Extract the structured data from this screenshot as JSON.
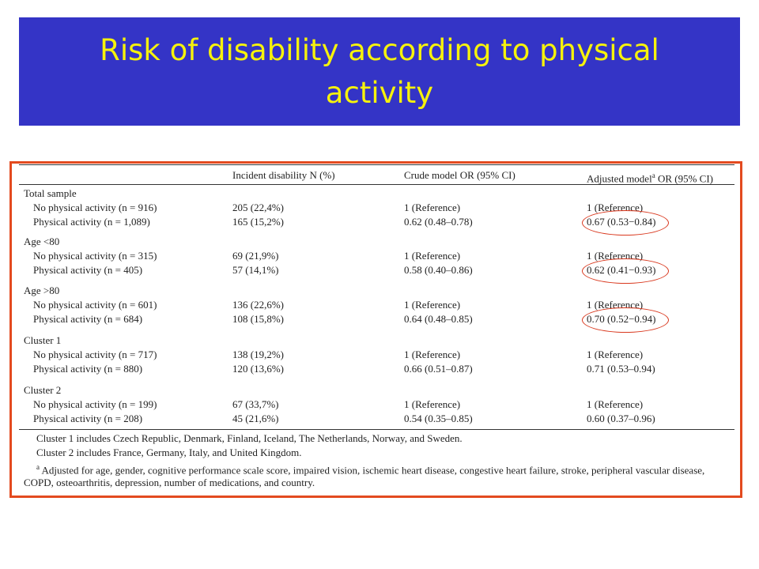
{
  "title": "Risk of disability according to physical activity",
  "table": {
    "headers": {
      "col1": "Incident disability N (%)",
      "col2": "Crude model OR (95% CI)",
      "col3_pre": "Adjusted model",
      "col3_sup": "a",
      "col3_post": " OR (95% CI)"
    },
    "groups": [
      {
        "label": "Total sample",
        "rows": [
          {
            "label": "No physical activity (n = 916)",
            "incident": "205 (22,4%)",
            "crude": "1 (Reference)",
            "adjusted": "1 (Reference)"
          },
          {
            "label": "Physical activity (n = 1,089)",
            "incident": "165 (15,2%)",
            "crude": "0.62 (0.48–0.78)",
            "adjusted": "0.67 (0.53−0.84)"
          }
        ]
      },
      {
        "label": "Age <80",
        "rows": [
          {
            "label": "No physical activity (n = 315)",
            "incident": "69 (21,9%)",
            "crude": "1 (Reference)",
            "adjusted": "1 (Reference)"
          },
          {
            "label": "Physical activity (n = 405)",
            "incident": "57 (14,1%)",
            "crude": "0.58 (0.40–0.86)",
            "adjusted": "0.62 (0.41−0.93)"
          }
        ]
      },
      {
        "label": "Age >80",
        "rows": [
          {
            "label": "No physical activity (n = 601)",
            "incident": "136 (22,6%)",
            "crude": "1 (Reference)",
            "adjusted": "1 (Reference)"
          },
          {
            "label": "Physical activity (n = 684)",
            "incident": "108 (15,8%)",
            "crude": "0.64 (0.48–0.85)",
            "adjusted": "0.70 (0.52−0.94)"
          }
        ]
      },
      {
        "label": "Cluster 1",
        "rows": [
          {
            "label": "No physical activity (n = 717)",
            "incident": "138 (19,2%)",
            "crude": "1 (Reference)",
            "adjusted": "1 (Reference)"
          },
          {
            "label": "Physical activity (n = 880)",
            "incident": "120 (13,6%)",
            "crude": "0.66 (0.51–0.87)",
            "adjusted": "0.71 (0.53–0.94)"
          }
        ]
      },
      {
        "label": "Cluster 2",
        "rows": [
          {
            "label": "No physical activity (n = 199)",
            "incident": "67 (33,7%)",
            "crude": "1 (Reference)",
            "adjusted": "1 (Reference)"
          },
          {
            "label": "Physical activity (n = 208)",
            "incident": "45 (21,6%)",
            "crude": "0.54 (0.35–0.85)",
            "adjusted": "0.60 (0.37–0.96)"
          }
        ]
      }
    ],
    "footnotes": [
      "Cluster 1 includes Czech Republic, Denmark, Finland, Iceland, The Netherlands, Norway, and Sweden.",
      "Cluster 2 includes France, Germany, Italy, and United Kingdom.",
      "Adjusted for age, gender, cognitive performance scale score, impaired vision, ischemic heart disease, congestive heart failure, stroke, peripheral vascular disease, COPD, osteoarthritis, depression, number of medications, and country."
    ],
    "footnote_marker": "a"
  },
  "colors": {
    "banner_bg": "#3434c6",
    "title_text": "#f6f20c",
    "frame_border": "#e34a1f",
    "highlight_ring": "#d9381e"
  }
}
